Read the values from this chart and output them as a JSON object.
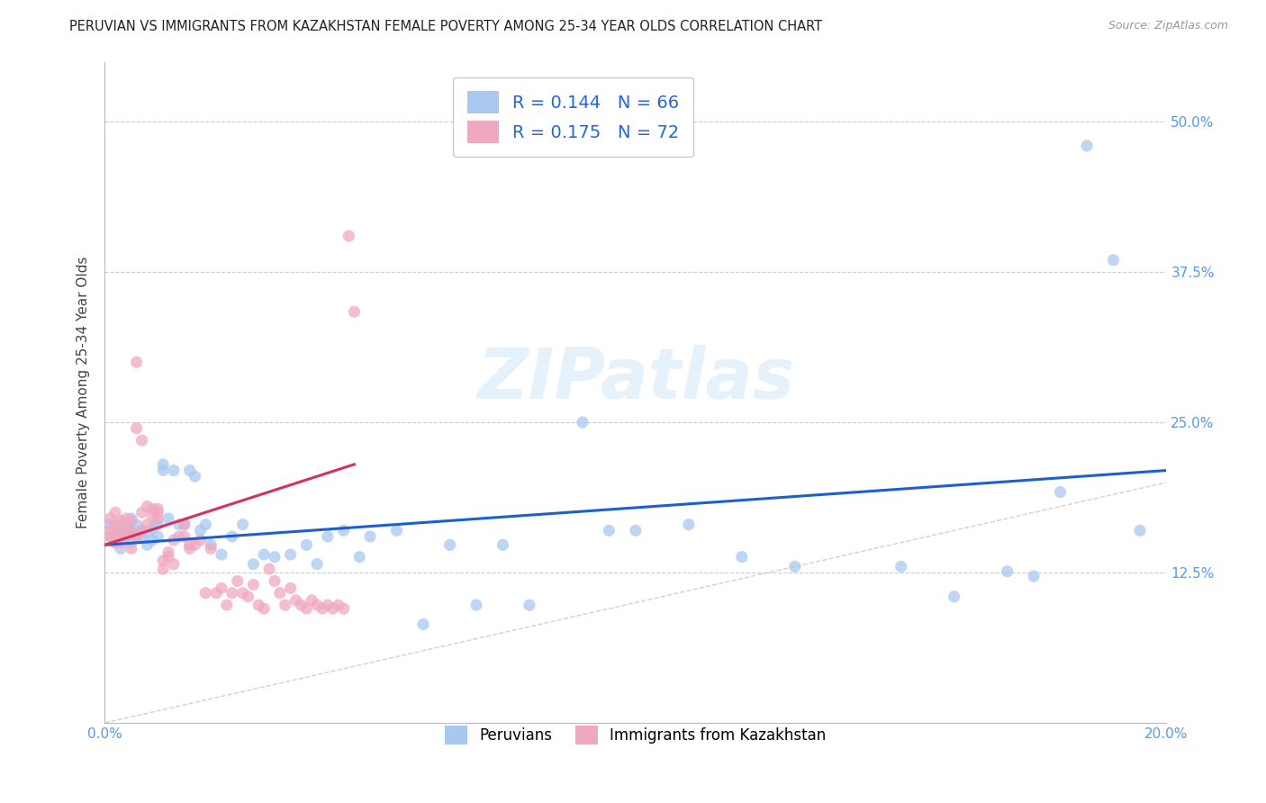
{
  "title": "PERUVIAN VS IMMIGRANTS FROM KAZAKHSTAN FEMALE POVERTY AMONG 25-34 YEAR OLDS CORRELATION CHART",
  "source": "Source: ZipAtlas.com",
  "ylabel": "Female Poverty Among 25-34 Year Olds",
  "xlim": [
    0.0,
    0.2
  ],
  "ylim": [
    0.0,
    0.55
  ],
  "legend_labels": [
    "Peruvians",
    "Immigrants from Kazakhstan"
  ],
  "series1_color": "#a8c8f0",
  "series2_color": "#f0a8c0",
  "line1_color": "#1a5fd4",
  "line2_color": "#d43060",
  "diag_line_color": "#cccccc",
  "R1": 0.144,
  "N1": 66,
  "R2": 0.175,
  "N2": 72,
  "watermark": "ZIPatlas",
  "peru_x": [
    0.001,
    0.001,
    0.002,
    0.002,
    0.003,
    0.003,
    0.003,
    0.004,
    0.004,
    0.005,
    0.005,
    0.005,
    0.006,
    0.006,
    0.007,
    0.007,
    0.008,
    0.008,
    0.009,
    0.009,
    0.01,
    0.01,
    0.011,
    0.011,
    0.012,
    0.013,
    0.014,
    0.015,
    0.016,
    0.017,
    0.018,
    0.019,
    0.02,
    0.022,
    0.024,
    0.026,
    0.028,
    0.03,
    0.032,
    0.035,
    0.038,
    0.04,
    0.042,
    0.045,
    0.048,
    0.05,
    0.055,
    0.06,
    0.065,
    0.07,
    0.075,
    0.08,
    0.09,
    0.095,
    0.1,
    0.11,
    0.12,
    0.13,
    0.15,
    0.16,
    0.17,
    0.175,
    0.18,
    0.185,
    0.19,
    0.195
  ],
  "peru_y": [
    0.155,
    0.165,
    0.15,
    0.16,
    0.145,
    0.155,
    0.165,
    0.155,
    0.16,
    0.15,
    0.16,
    0.17,
    0.155,
    0.165,
    0.155,
    0.16,
    0.148,
    0.158,
    0.152,
    0.162,
    0.155,
    0.165,
    0.215,
    0.21,
    0.17,
    0.21,
    0.165,
    0.165,
    0.21,
    0.205,
    0.16,
    0.165,
    0.148,
    0.14,
    0.155,
    0.165,
    0.132,
    0.14,
    0.138,
    0.14,
    0.148,
    0.132,
    0.155,
    0.16,
    0.138,
    0.155,
    0.16,
    0.082,
    0.148,
    0.098,
    0.148,
    0.098,
    0.25,
    0.16,
    0.16,
    0.165,
    0.138,
    0.13,
    0.13,
    0.105,
    0.126,
    0.122,
    0.192,
    0.48,
    0.385,
    0.16
  ],
  "kaz_x": [
    0.001,
    0.001,
    0.001,
    0.002,
    0.002,
    0.002,
    0.002,
    0.003,
    0.003,
    0.003,
    0.003,
    0.004,
    0.004,
    0.004,
    0.005,
    0.005,
    0.005,
    0.006,
    0.006,
    0.006,
    0.007,
    0.007,
    0.007,
    0.008,
    0.008,
    0.009,
    0.009,
    0.01,
    0.01,
    0.01,
    0.011,
    0.011,
    0.012,
    0.012,
    0.013,
    0.013,
    0.014,
    0.015,
    0.015,
    0.016,
    0.016,
    0.017,
    0.018,
    0.019,
    0.02,
    0.021,
    0.022,
    0.023,
    0.024,
    0.025,
    0.026,
    0.027,
    0.028,
    0.029,
    0.03,
    0.031,
    0.032,
    0.033,
    0.034,
    0.035,
    0.036,
    0.037,
    0.038,
    0.039,
    0.04,
    0.041,
    0.042,
    0.043,
    0.044,
    0.045,
    0.046,
    0.047
  ],
  "kaz_y": [
    0.155,
    0.16,
    0.17,
    0.15,
    0.165,
    0.175,
    0.16,
    0.15,
    0.16,
    0.168,
    0.155,
    0.162,
    0.17,
    0.155,
    0.145,
    0.158,
    0.168,
    0.245,
    0.3,
    0.155,
    0.235,
    0.16,
    0.175,
    0.165,
    0.18,
    0.178,
    0.172,
    0.17,
    0.178,
    0.175,
    0.128,
    0.135,
    0.142,
    0.138,
    0.152,
    0.132,
    0.155,
    0.155,
    0.165,
    0.148,
    0.145,
    0.148,
    0.152,
    0.108,
    0.145,
    0.108,
    0.112,
    0.098,
    0.108,
    0.118,
    0.108,
    0.105,
    0.115,
    0.098,
    0.095,
    0.128,
    0.118,
    0.108,
    0.098,
    0.112,
    0.102,
    0.098,
    0.095,
    0.102,
    0.098,
    0.095,
    0.098,
    0.095,
    0.098,
    0.095,
    0.405,
    0.342
  ]
}
